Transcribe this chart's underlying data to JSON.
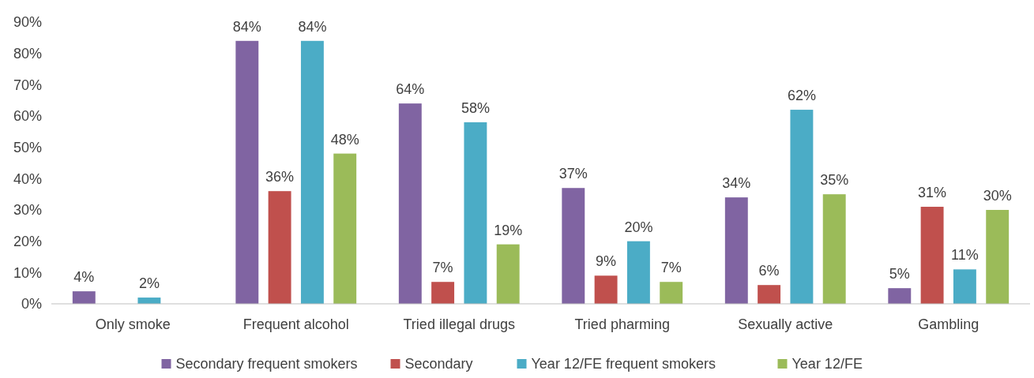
{
  "chart_data": {
    "type": "bar",
    "categories": [
      "Only smoke",
      "Frequent alcohol",
      "Tried illegal drugs",
      "Tried pharming",
      "Sexually active",
      "Gambling"
    ],
    "series": [
      {
        "name": "Secondary frequent smokers",
        "color": "#8064a2",
        "values": [
          4,
          84,
          64,
          37,
          34,
          5
        ],
        "value_labels": [
          "4%",
          "84%",
          "64%",
          "37%",
          "34%",
          "5%"
        ]
      },
      {
        "name": "Secondary",
        "color": "#c0504d",
        "values": [
          null,
          36,
          7,
          9,
          6,
          31
        ],
        "value_labels": [
          null,
          "36%",
          "7%",
          "9%",
          "6%",
          "31%"
        ]
      },
      {
        "name": "Year 12/FE frequent smokers",
        "color": "#4bacc6",
        "values": [
          2,
          84,
          58,
          20,
          62,
          11
        ],
        "value_labels": [
          "2%",
          "84%",
          "58%",
          "20%",
          "62%",
          "11%"
        ]
      },
      {
        "name": "Year 12/FE",
        "color": "#9bbb59",
        "values": [
          null,
          48,
          19,
          7,
          35,
          30
        ],
        "value_labels": [
          null,
          "48%",
          "19%",
          "7%",
          "35%",
          "30%"
        ]
      }
    ],
    "ylim": [
      0,
      90
    ],
    "yticks": [
      {
        "value": 0,
        "label": "0%"
      },
      {
        "value": 10,
        "label": "10%"
      },
      {
        "value": 20,
        "label": "20%"
      },
      {
        "value": 30,
        "label": "30%"
      },
      {
        "value": 40,
        "label": "40%"
      },
      {
        "value": 50,
        "label": "50%"
      },
      {
        "value": 60,
        "label": "60%"
      },
      {
        "value": 70,
        "label": "70%"
      },
      {
        "value": 80,
        "label": "80%"
      },
      {
        "value": 90,
        "label": "90%"
      }
    ],
    "grid": false,
    "legend": "bottom"
  }
}
